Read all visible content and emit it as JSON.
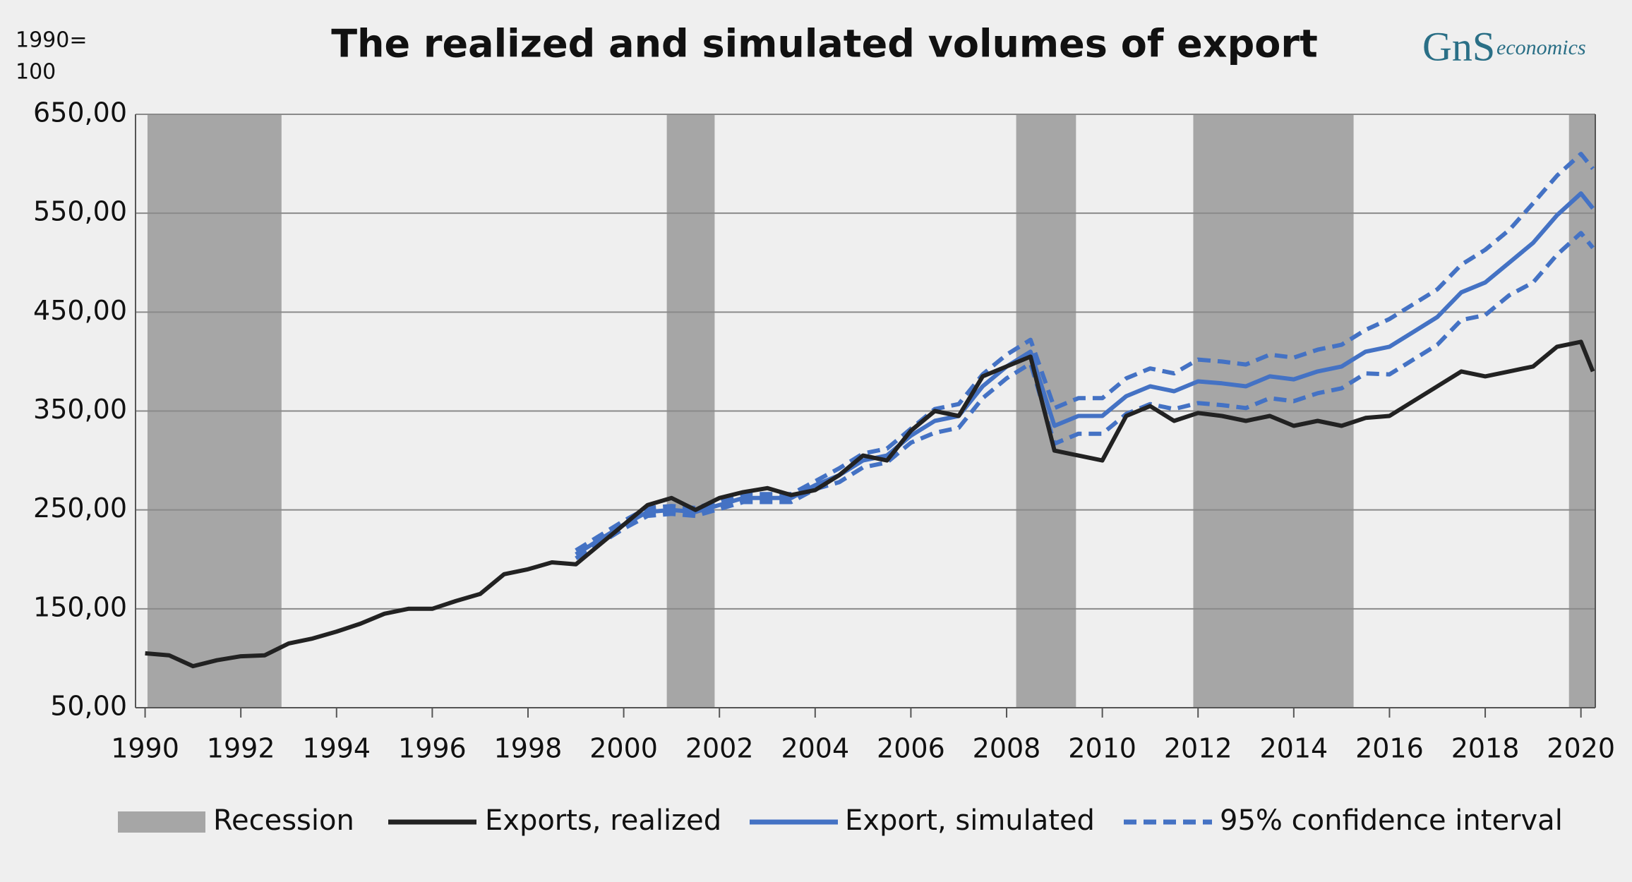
{
  "chart_data": {
    "type": "line",
    "title": "The realized and simulated volumes of export",
    "y_unit": [
      "1990=",
      "100"
    ],
    "logo": {
      "mark": "GnS",
      "text": "economics"
    },
    "x": [
      1990,
      1990.5,
      1991,
      1991.5,
      1992,
      1992.5,
      1993,
      1993.5,
      1994,
      1994.5,
      1995,
      1995.5,
      1996,
      1996.5,
      1997,
      1997.5,
      1998,
      1998.5,
      1999,
      1999.5,
      2000,
      2000.5,
      2001,
      2001.5,
      2002,
      2002.5,
      2003,
      2003.5,
      2004,
      2004.5,
      2005,
      2005.5,
      2006,
      2006.5,
      2007,
      2007.5,
      2008,
      2008.5,
      2009,
      2009.5,
      2010,
      2010.5,
      2011,
      2011.5,
      2012,
      2012.5,
      2013,
      2013.5,
      2014,
      2014.5,
      2015,
      2015.5,
      2016,
      2016.5,
      2017,
      2017.5,
      2018,
      2018.5,
      2019,
      2019.5,
      2020,
      2020.25
    ],
    "recessions": {
      "name": "Recession",
      "color": "#a6a6a6",
      "spans": [
        [
          1990.05,
          1992.85
        ],
        [
          2000.9,
          2001.9
        ],
        [
          2008.2,
          2009.45
        ],
        [
          2011.9,
          2015.25
        ],
        [
          2019.75,
          2020.3
        ]
      ]
    },
    "series": [
      {
        "name": "Exports, realized",
        "color": "#222222",
        "dash": false,
        "values": [
          105,
          103,
          92,
          98,
          102,
          103,
          115,
          120,
          127,
          135,
          145,
          150,
          150,
          158,
          165,
          185,
          190,
          197,
          195,
          215,
          235,
          255,
          262,
          250,
          262,
          268,
          272,
          265,
          270,
          285,
          305,
          300,
          330,
          350,
          345,
          385,
          395,
          405,
          310,
          305,
          300,
          345,
          355,
          340,
          348,
          345,
          340,
          345,
          335,
          340,
          335,
          343,
          345,
          360,
          375,
          390,
          385,
          390,
          395,
          415,
          420,
          390
        ]
      },
      {
        "name": "Export, simulated",
        "color": "#4472c4",
        "dash": false,
        "values": [
          null,
          null,
          null,
          null,
          null,
          null,
          null,
          null,
          null,
          null,
          null,
          null,
          null,
          null,
          null,
          null,
          null,
          null,
          205,
          220,
          235,
          248,
          250,
          248,
          255,
          262,
          262,
          262,
          275,
          285,
          300,
          305,
          325,
          340,
          345,
          375,
          395,
          410,
          335,
          345,
          345,
          365,
          375,
          370,
          380,
          378,
          375,
          385,
          382,
          390,
          395,
          410,
          415,
          430,
          445,
          470,
          480,
          500,
          520,
          548,
          570,
          555
        ]
      },
      {
        "name": "95% confidence interval",
        "color": "#4472c4",
        "dash": true,
        "values": [
          null,
          null,
          null,
          null,
          null,
          null,
          null,
          null,
          null,
          null,
          null,
          null,
          null,
          null,
          null,
          null,
          null,
          null,
          209,
          224,
          239,
          252,
          254,
          252,
          259,
          266,
          266,
          266,
          279,
          292,
          307,
          312,
          332,
          352,
          357,
          387,
          407,
          422,
          353,
          363,
          363,
          383,
          393,
          388,
          402,
          400,
          397,
          407,
          404,
          412,
          417,
          432,
          443,
          458,
          473,
          498,
          513,
          533,
          560,
          588,
          610,
          595
        ]
      },
      {
        "dash": true,
        "color": "#4472c4",
        "values": [
          null,
          null,
          null,
          null,
          null,
          null,
          null,
          null,
          null,
          null,
          null,
          null,
          null,
          null,
          null,
          null,
          null,
          null,
          201,
          216,
          231,
          244,
          246,
          244,
          251,
          258,
          258,
          258,
          271,
          278,
          293,
          298,
          318,
          328,
          333,
          363,
          383,
          398,
          317,
          327,
          327,
          347,
          357,
          352,
          358,
          356,
          353,
          363,
          360,
          368,
          373,
          388,
          387,
          402,
          417,
          442,
          447,
          467,
          480,
          508,
          530,
          515
        ]
      }
    ],
    "xlim": [
      1989.8,
      2020.3
    ],
    "xticks": [
      1990,
      1992,
      1994,
      1996,
      1998,
      2000,
      2002,
      2004,
      2006,
      2008,
      2010,
      2012,
      2014,
      2016,
      2018,
      2020
    ],
    "ylim": [
      50,
      650
    ],
    "yticks": [
      {
        "value": 50,
        "label": "50,00"
      },
      {
        "value": 150,
        "label": "150,00"
      },
      {
        "value": 250,
        "label": "250,00"
      },
      {
        "value": 350,
        "label": "350,00"
      },
      {
        "value": 450,
        "label": "450,00"
      },
      {
        "value": 550,
        "label": "550,00"
      },
      {
        "value": 650,
        "label": "650,00"
      }
    ],
    "grid": true
  }
}
